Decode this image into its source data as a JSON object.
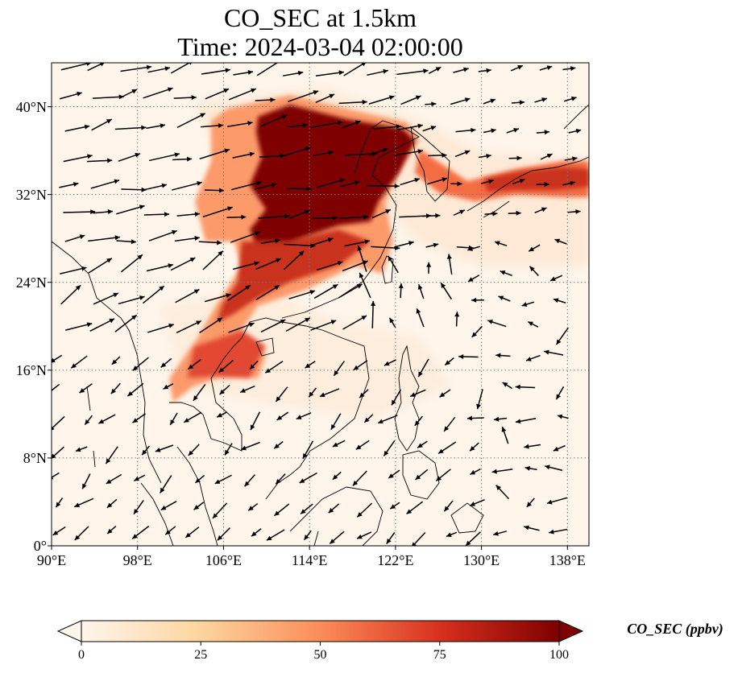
{
  "title": "CO_SEC at 1.5km",
  "subtitle": "Time: 2024-03-04 02:00:00",
  "colors": {
    "low": "#fff5eb",
    "mid_low": "#fdd49e",
    "mid": "#fc8d59",
    "mid_high": "#d7301f",
    "high": "#7f0000",
    "coastline": "#000000",
    "gridline": "#777777",
    "arrow": "#000000"
  },
  "map": {
    "projection": "PlateCarree",
    "lon_range": [
      90,
      140
    ],
    "lat_range": [
      0,
      44
    ],
    "gridlines": "dotted",
    "lon_ticks": [
      "90°E",
      "98°E",
      "106°E",
      "114°E",
      "122°E",
      "130°E",
      "138°E"
    ],
    "lat_ticks": [
      "0°",
      "8°N",
      "16°N",
      "24°N",
      "32°N",
      "40°N"
    ],
    "lon_tick_values": [
      90,
      98,
      106,
      114,
      122,
      130,
      138
    ],
    "lat_tick_values": [
      0,
      8,
      16,
      24,
      32,
      40
    ],
    "field": "CO_SEC",
    "level": "1.5km",
    "plume": {
      "peak_region": "North China Plain",
      "peak_center": [
        116,
        37
      ],
      "values_max": 100,
      "secondary": [
        "Korea–Japan band",
        "South China–Indochina belt"
      ]
    },
    "wind_vectors": "westerly / south-westerly flow over China, north-easterly trades over South China Sea"
  },
  "colorbar": {
    "label": "CO_SEC (ppbv)",
    "min": 0,
    "max": 100,
    "extend": "both",
    "ticks": [
      "0",
      "25",
      "50",
      "75",
      "100"
    ],
    "tick_values": [
      0,
      25,
      50,
      75,
      100
    ]
  }
}
